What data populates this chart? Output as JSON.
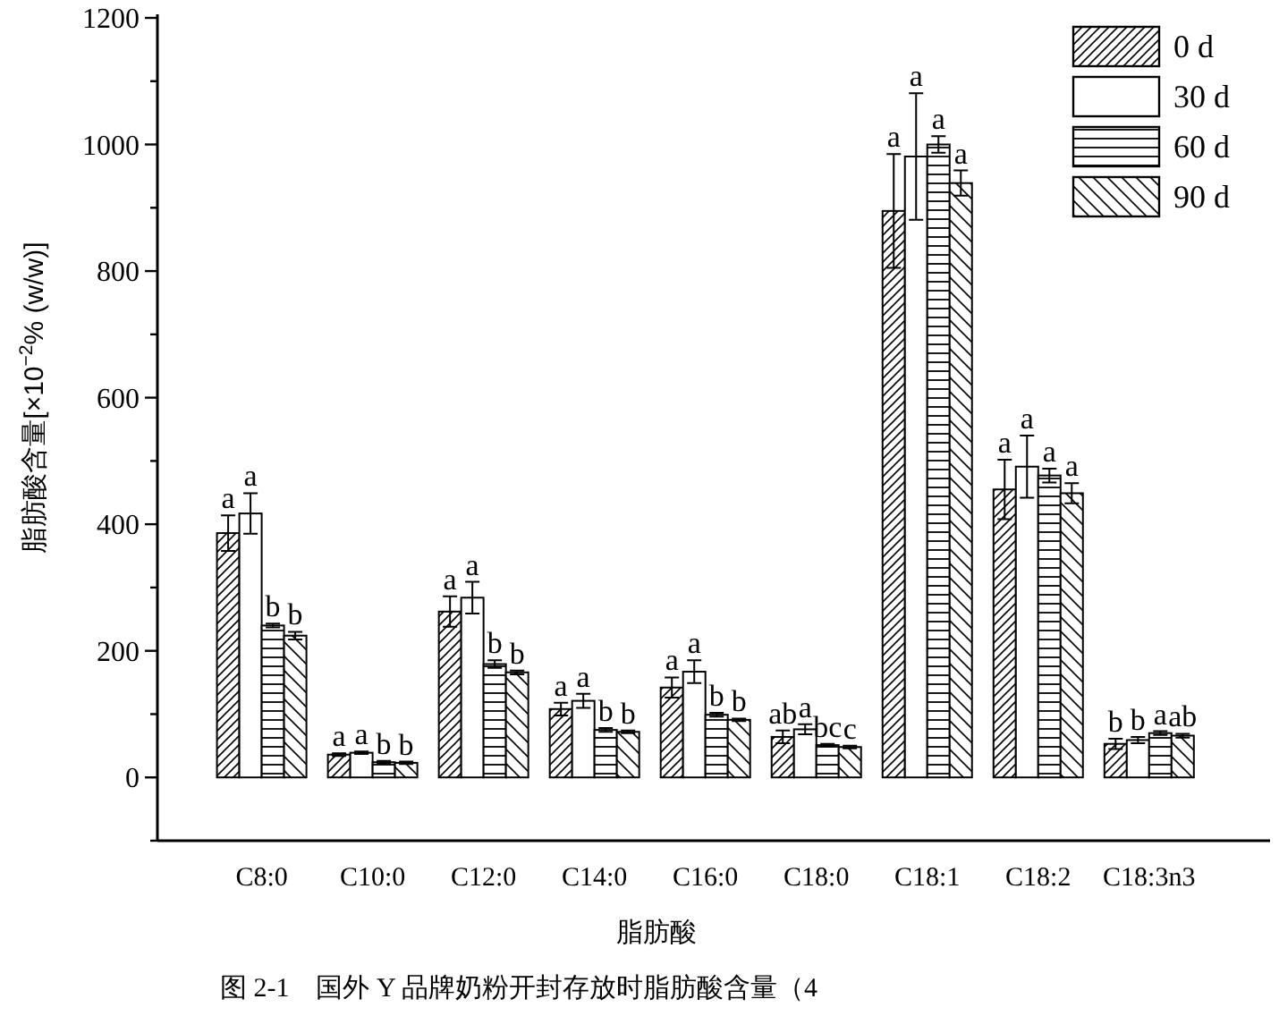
{
  "chart_data": {
    "type": "bar",
    "xlabel": "脂肪酸",
    "ylabel": "脂肪酸含量[×10$^{−2}$% (w/w)]",
    "annotations": [
      "图 2-1　国外 Y 品牌奶粉开封存放时脂肪酸含量（4"
    ],
    "categories": [
      "C8:0",
      "C10:0",
      "C12:0",
      "C14:0",
      "C16:0",
      "C18:0",
      "C18:1",
      "C18:2",
      "C18:3n3"
    ],
    "ylim": [
      -100,
      1200
    ],
    "yticks": [
      {
        "value": -100,
        "label": null
      },
      0,
      {
        "value": 100,
        "label": null
      },
      200,
      {
        "value": 300,
        "label": null
      },
      400,
      {
        "value": 500,
        "label": null
      },
      600,
      {
        "value": 700,
        "label": null
      },
      800,
      {
        "value": 900,
        "label": null
      },
      1000,
      {
        "value": 1100,
        "label": null
      },
      1200
    ],
    "legend": "top right",
    "series": [
      {
        "name": "0 d",
        "color": "#000000",
        "values": [
          386,
          36,
          262,
          108,
          142,
          64,
          895,
          455,
          53
        ],
        "errors": [
          28,
          2,
          24,
          10,
          16,
          10,
          90,
          47,
          8
        ],
        "value_labels": [
          "a",
          "a",
          "a",
          "a",
          "a",
          "ab",
          "a",
          "a",
          "b"
        ]
      },
      {
        "name": "30 d",
        "color": "#000000",
        "values": [
          417,
          39,
          284,
          121,
          167,
          76,
          981,
          491,
          59
        ],
        "errors": [
          32,
          2,
          25,
          11,
          18,
          8,
          100,
          49,
          5
        ],
        "value_labels": [
          "a",
          "a",
          "a",
          "a",
          "a",
          "a",
          "a",
          "a",
          "b"
        ]
      },
      {
        "name": "60 d",
        "color": "#000000",
        "values": [
          240,
          24,
          179,
          75,
          99,
          51,
          1000,
          477,
          70
        ],
        "errors": [
          3,
          2,
          6,
          3,
          3,
          2,
          13,
          11,
          3
        ],
        "value_labels": [
          "b",
          "b",
          "b",
          "b",
          "b",
          "bc",
          "a",
          "a",
          "a"
        ]
      },
      {
        "name": "90 d",
        "color": "#000000",
        "values": [
          224,
          23,
          166,
          72,
          91,
          48,
          939,
          449,
          66
        ],
        "errors": [
          6,
          2,
          3,
          2,
          2,
          2,
          20,
          16,
          3
        ],
        "value_labels": [
          "b",
          "b",
          "b",
          "b",
          "b",
          "c",
          "a",
          "a",
          "ab"
        ]
      }
    ]
  }
}
